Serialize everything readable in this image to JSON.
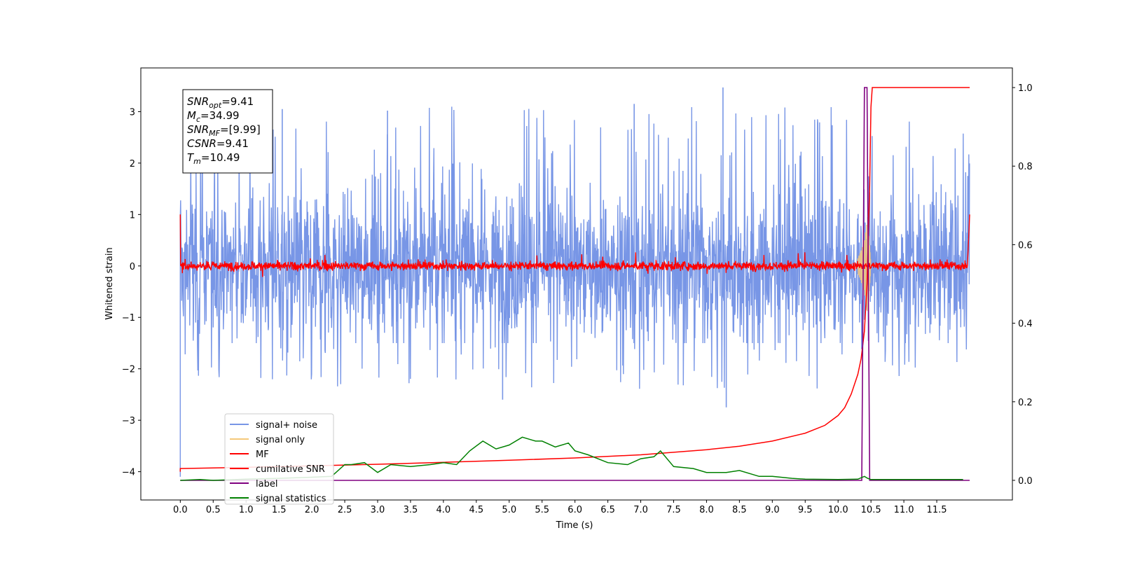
{
  "chart_data": {
    "type": "line",
    "xlabel": "Time (s)",
    "ylabel": "Whitened strain",
    "xlim": [
      -0.6,
      12.65
    ],
    "ylim": [
      -4.55,
      3.85
    ],
    "y2lim": [
      -0.05,
      1.05
    ],
    "x_ticks": [
      0.0,
      0.5,
      1.0,
      1.5,
      2.0,
      2.5,
      3.0,
      3.5,
      4.0,
      4.5,
      5.0,
      5.5,
      6.0,
      6.5,
      7.0,
      7.5,
      8.0,
      8.5,
      9.0,
      9.5,
      10.0,
      10.5,
      11.0,
      11.5
    ],
    "x_tick_labels": [
      "0.0",
      "0.5",
      "1.0",
      "1.5",
      "2.0",
      "2.5",
      "3.0",
      "3.5",
      "4.0",
      "4.5",
      "5.0",
      "5.5",
      "6.0",
      "6.5",
      "7.0",
      "7.5",
      "8.0",
      "8.5",
      "9.0",
      "9.5",
      "10.0",
      "10.5",
      "11.0",
      "11.5"
    ],
    "y_ticks": [
      -4,
      -3,
      -2,
      -1,
      0,
      1,
      2,
      3
    ],
    "y_tick_labels": [
      "−4",
      "−3",
      "−2",
      "−1",
      "0",
      "1",
      "2",
      "3"
    ],
    "y2_ticks": [
      0.0,
      0.2,
      0.4,
      0.6,
      0.8,
      1.0
    ],
    "y2_tick_labels": [
      "0.0",
      "0.2",
      "0.4",
      "0.6",
      "0.8",
      "1.0"
    ],
    "grid": false,
    "legend_position": "lower-left",
    "annotation": [
      {
        "label": "SNR",
        "sub": "opt",
        "value": "=9.41"
      },
      {
        "label": "M",
        "sub": "c",
        "value": "=34.99"
      },
      {
        "label": "SNR",
        "sub": "MF",
        "value": "=[9.99]"
      },
      {
        "label": "CSNR",
        "sub": "",
        "value": "=9.41"
      },
      {
        "label": "T",
        "sub": "m",
        "value": "=10.49"
      }
    ],
    "noise": {
      "t_start": 0.0,
      "t_end": 12.0,
      "band": [
        -1.5,
        1.5
      ],
      "extremes": [
        -2.7,
        3.5
      ],
      "initial_dip": -4.1
    },
    "merger_time": 10.49,
    "series": [
      {
        "name": "signal+ noise",
        "color": "#7896e6",
        "axis": "left"
      },
      {
        "name": "signal only",
        "color": "#f5c87a",
        "axis": "left",
        "x": [
          10.3,
          10.35,
          10.4,
          10.45,
          10.48,
          10.5
        ],
        "y": [
          0.15,
          0.3,
          0.5,
          0.95,
          0.4,
          0.0
        ]
      },
      {
        "name": "MF",
        "color": "#ff0000",
        "axis": "left"
      },
      {
        "name": "cumilative SNR",
        "color": "#ff0000",
        "axis": "right",
        "x": [
          0.0,
          1.0,
          2.0,
          3.0,
          4.0,
          5.0,
          6.0,
          7.0,
          8.0,
          8.5,
          9.0,
          9.5,
          9.8,
          10.0,
          10.1,
          10.2,
          10.3,
          10.35,
          10.4,
          10.44,
          10.48,
          10.5,
          10.52,
          12.0
        ],
        "y": [
          0.03,
          0.033,
          0.037,
          0.041,
          0.046,
          0.051,
          0.057,
          0.065,
          0.078,
          0.087,
          0.1,
          0.12,
          0.14,
          0.165,
          0.185,
          0.22,
          0.27,
          0.31,
          0.38,
          0.5,
          0.75,
          0.95,
          1.0,
          1.0
        ]
      },
      {
        "name": "label",
        "color": "#800080",
        "axis": "right",
        "x": [
          0.0,
          10.36,
          10.4,
          10.44,
          10.48,
          12.0
        ],
        "y": [
          0.0,
          0.0,
          1.0,
          1.0,
          0.0,
          0.0
        ]
      },
      {
        "name": "signal statistics",
        "color": "#008000",
        "axis": "right",
        "x": [
          0.0,
          0.3,
          0.5,
          1.0,
          1.5,
          2.0,
          2.3,
          2.5,
          2.6,
          2.8,
          3.0,
          3.2,
          3.5,
          3.8,
          4.0,
          4.2,
          4.4,
          4.6,
          4.8,
          5.0,
          5.2,
          5.4,
          5.5,
          5.7,
          5.9,
          6.0,
          6.2,
          6.5,
          6.8,
          7.0,
          7.2,
          7.3,
          7.5,
          7.8,
          8.0,
          8.3,
          8.5,
          8.8,
          9.0,
          9.3,
          9.5,
          10.0,
          10.3,
          10.4,
          10.45,
          10.5,
          11.0,
          11.5,
          11.9
        ],
        "y": [
          0.0,
          0.002,
          0.0,
          0.003,
          0.005,
          0.008,
          0.01,
          0.04,
          0.04,
          0.045,
          0.02,
          0.04,
          0.035,
          0.04,
          0.045,
          0.04,
          0.075,
          0.1,
          0.08,
          0.09,
          0.11,
          0.1,
          0.1,
          0.085,
          0.095,
          0.075,
          0.065,
          0.045,
          0.04,
          0.055,
          0.06,
          0.075,
          0.035,
          0.03,
          0.02,
          0.02,
          0.025,
          0.01,
          0.01,
          0.005,
          0.003,
          0.002,
          0.003,
          0.01,
          0.005,
          0.002,
          0.002,
          0.002,
          0.002
        ]
      }
    ]
  }
}
